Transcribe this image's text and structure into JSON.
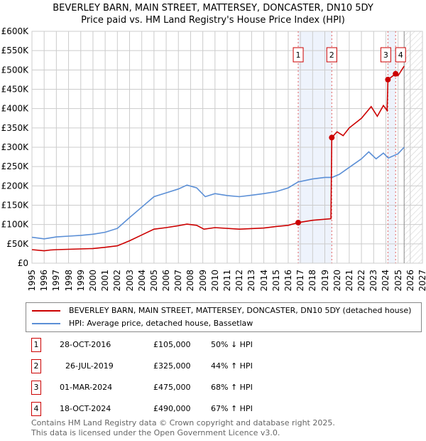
{
  "title": [
    "BEVERLEY BARN, MAIN STREET, MATTERSEY, DONCASTER, DN10 5DY",
    "Price paid vs. HM Land Registry's House Price Index (HPI)"
  ],
  "chart_data": {
    "type": "line",
    "title": "BEVERLEY BARN, MAIN STREET, MATTERSEY, DONCASTER, DN10 5DY - Price paid vs. HM Land Registry's House Price Index (HPI)",
    "xlim": [
      1995,
      2027
    ],
    "ylim": [
      0,
      600000
    ],
    "xticks": [
      "1995",
      "1996",
      "1997",
      "1998",
      "1999",
      "2000",
      "2001",
      "2002",
      "2003",
      "2004",
      "2005",
      "2006",
      "2007",
      "2008",
      "2009",
      "2010",
      "2011",
      "2012",
      "2013",
      "2014",
      "2015",
      "2016",
      "2017",
      "2018",
      "2019",
      "2020",
      "2021",
      "2022",
      "2023",
      "2024",
      "2025",
      "2026",
      "2027"
    ],
    "yticks": [
      "£0",
      "£50K",
      "£100K",
      "£150K",
      "£200K",
      "£250K",
      "£300K",
      "£350K",
      "£400K",
      "£450K",
      "£500K",
      "£550K",
      "£600K"
    ],
    "grid": true,
    "series": [
      {
        "name": "BEVERLEY BARN, MAIN STREET, MATTERSEY, DONCASTER, DN10 5DY (detached house)",
        "color": "#cc0000",
        "x": [
          1995,
          1996,
          1996.5,
          1997,
          2000,
          2001,
          2002,
          2003,
          2004,
          2005,
          2006,
          2007,
          2007.7,
          2008.5,
          2009.1,
          2010,
          2012,
          2014,
          2015,
          2016,
          2016.82,
          2018,
          2019.5,
          2019.57,
          2020,
          2020.5,
          2021,
          2022,
          2022.8,
          2023.3,
          2023.8,
          2024.1,
          2024.17,
          2024.8,
          2025,
          2025.5
        ],
        "y": [
          35000,
          32000,
          34000,
          35000,
          38000,
          41000,
          45000,
          58000,
          73000,
          88000,
          92000,
          97000,
          101000,
          98000,
          88000,
          92000,
          88000,
          91000,
          95000,
          98000,
          105000,
          111000,
          115000,
          325000,
          340000,
          330000,
          350000,
          375000,
          405000,
          380000,
          408000,
          395000,
          475000,
          490000,
          485000,
          510000
        ]
      },
      {
        "name": "HPI: Average price, detached house, Bassetlaw",
        "color": "#5b8fd6",
        "x": [
          1995,
          1996,
          1997,
          1998,
          1999,
          2000,
          2001,
          2002,
          2003,
          2004,
          2005,
          2006,
          2007,
          2007.7,
          2008.5,
          2009.2,
          2010,
          2011,
          2012,
          2013,
          2014,
          2015,
          2016,
          2016.8,
          2018,
          2019,
          2019.6,
          2020.2,
          2021,
          2022,
          2022.6,
          2023.2,
          2023.8,
          2024.2,
          2025,
          2025.5
        ],
        "y": [
          67000,
          63000,
          68000,
          70000,
          72000,
          75000,
          80000,
          90000,
          118000,
          145000,
          172000,
          182000,
          192000,
          202000,
          195000,
          172000,
          180000,
          175000,
          172000,
          176000,
          180000,
          185000,
          195000,
          210000,
          218000,
          222000,
          222000,
          230000,
          248000,
          270000,
          288000,
          270000,
          285000,
          272000,
          283000,
          300000
        ]
      }
    ],
    "sales": [
      {
        "label": "1",
        "x": 2016.82,
        "y": 105000,
        "date": "28-OCT-2016",
        "price": "£105,000",
        "hpi": "50% ↓ HPI"
      },
      {
        "label": "2",
        "x": 2019.57,
        "y": 325000,
        "date": "26-JUL-2019",
        "price": "£325,000",
        "hpi": "44% ↑ HPI"
      },
      {
        "label": "3",
        "x": 2024.17,
        "y": 475000,
        "date": "01-MAR-2024",
        "price": "£475,000",
        "hpi": "68% ↑ HPI"
      },
      {
        "label": "4",
        "x": 2024.8,
        "y": 490000,
        "date": "18-OCT-2024",
        "price": "£490,000",
        "hpi": "67% ↑ HPI"
      }
    ],
    "forecast_start": 2025.5
  },
  "legend": {
    "property": "BEVERLEY BARN, MAIN STREET, MATTERSEY, DONCASTER, DN10 5DY (detached house)",
    "hpi": "HPI: Average price, detached house, Bassetlaw"
  },
  "footer": [
    "Contains HM Land Registry data © Crown copyright and database right 2025.",
    "This data is licensed under the Open Government Licence v3.0."
  ]
}
